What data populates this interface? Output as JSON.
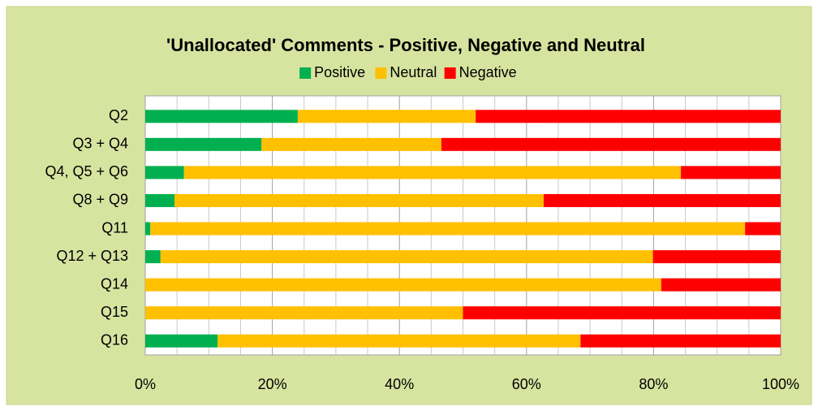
{
  "chart_data": {
    "type": "stacked_barh",
    "title": "'Unallocated' Comments - Positive, Negative and Neutral",
    "categories": [
      "Q2",
      "Q3 + Q4",
      "Q4, Q5 + Q6",
      "Q8 + Q9",
      "Q11",
      "Q12 + Q13",
      "Q14",
      "Q15",
      "Q16"
    ],
    "series": [
      {
        "name": "Positive",
        "color": "#00b050",
        "values": [
          24,
          18.3,
          6.1,
          4.6,
          0.8,
          2.4,
          0,
          0,
          11.4
        ]
      },
      {
        "name": "Neutral",
        "color": "#ffc000",
        "values": [
          28,
          28.3,
          78.2,
          58.1,
          93.6,
          77.5,
          81.2,
          50,
          57.1
        ]
      },
      {
        "name": "Negative",
        "color": "#ff0000",
        "values": [
          48,
          53.4,
          15.7,
          37.3,
          5.6,
          20.1,
          18.8,
          50,
          31.5
        ]
      }
    ],
    "xlim": [
      0,
      100
    ],
    "xticks": [
      {
        "value": 0,
        "label": "0%"
      },
      {
        "value": 20,
        "label": "20%"
      },
      {
        "value": 40,
        "label": "40%"
      },
      {
        "value": 60,
        "label": "60%"
      },
      {
        "value": 80,
        "label": "80%"
      },
      {
        "value": 100,
        "label": "100%"
      }
    ],
    "xminorticks": [
      5,
      10,
      15,
      25,
      30,
      35,
      45,
      50,
      55,
      65,
      70,
      75,
      85,
      90,
      95
    ],
    "grid": true,
    "legend": "top"
  }
}
